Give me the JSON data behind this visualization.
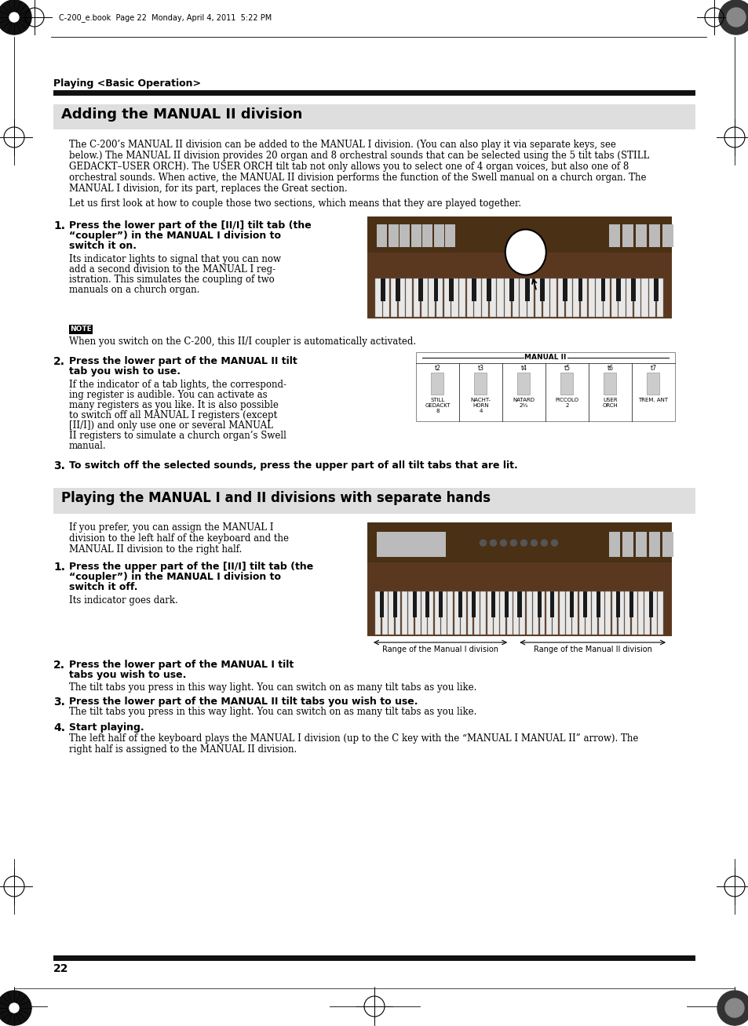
{
  "page_bg": "#ffffff",
  "header_text": "C-200_e.book  Page 22  Monday, April 4, 2011  5:22 PM",
  "section_label": "Playing <Basic Operation>",
  "section1_title": "Adding the MANUAL II division",
  "section1_title_bg": "#dedede",
  "section2_title": "Playing the MANUAL I and II divisions with separate hands",
  "section2_title_bg": "#dedede",
  "body1_lines": [
    "The C-200’s MANUAL II division can be added to the MANUAL I division. (You can also play it via separate keys, see",
    "below.) The MANUAL II division provides 20 organ and 8 orchestral sounds that can be selected using the 5 tilt tabs (STILL",
    "GEDACKT–USER ORCH). The USER ORCH tilt tab not only allows you to select one of 4 organ voices, but also one of 8",
    "orchestral sounds. When active, the MANUAL II division performs the function of the Swell manual on a church organ. The",
    "MANUAL I division, for its part, replaces the Great section."
  ],
  "body2": "Let us first look at how to couple those two sections, which means that they are played together.",
  "s1_bold_lines": [
    "Press the lower part of the [II/I] tilt tab (the",
    "“coupler”) in the MANUAL I division to",
    "switch it on."
  ],
  "s1_body_lines": [
    "Its indicator lights to signal that you can now",
    "add a second division to the MANUAL I reg-",
    "istration. This simulates the coupling of two",
    "manuals on a church organ."
  ],
  "note_text": "When you switch on the C-200, this II/I coupler is automatically activated.",
  "s2_bold_lines": [
    "Press the lower part of the MANUAL II tilt",
    "tab you wish to use."
  ],
  "s2_body_lines": [
    "If the indicator of a tab lights, the correspond-",
    "ing register is audible. You can activate as",
    "many registers as you like. It is also possible",
    "to switch off all MANUAL I registers (except",
    "[II/I]) and only use one or several MANUAL",
    "II registers to simulate a church organ’s Swell",
    "manual."
  ],
  "s3_text": "To switch off the selected sounds, press the upper part of all tilt tabs that are lit.",
  "sec2_intro_lines": [
    "If you prefer, you can assign the MANUAL I",
    "division to the left half of the keyboard and the",
    "MANUAL II division to the right half."
  ],
  "p2s1_bold_lines": [
    "Press the upper part of the [II/I] tilt tab (the",
    "“coupler”) in the MANUAL I division to",
    "switch it off."
  ],
  "p2s1_body": "Its indicator goes dark.",
  "p2s2_bold_lines": [
    "Press the lower part of the MANUAL I tilt",
    "tabs you wish to use."
  ],
  "p2s2_body": "The tilt tabs you press in this way light. You can switch on as many tilt tabs as you like.",
  "p2s3_bold": "Press the lower part of the MANUAL II tilt tabs you wish to use.",
  "p2s3_body": "The tilt tabs you press in this way light. You can switch on as many tilt tabs as you like.",
  "p2s4_bold": "Start playing.",
  "p2s4_body_lines": [
    "The left half of the keyboard plays the MANUAL I division (up to the C key with the “MANUAL I MANUAL II” arrow). The",
    "right half is assigned to the MANUAL II division."
  ],
  "page_number": "22",
  "range_label_left": "Range of the Manual I division",
  "range_label_right": "Range of the Manual II division",
  "organ_color": "#5a3820",
  "organ_color2": "#4a3015",
  "key_white": "#e8e8e8",
  "key_black": "#1a1a1a",
  "tab_color": "#bbbbbb",
  "dark_bar": "#111111"
}
